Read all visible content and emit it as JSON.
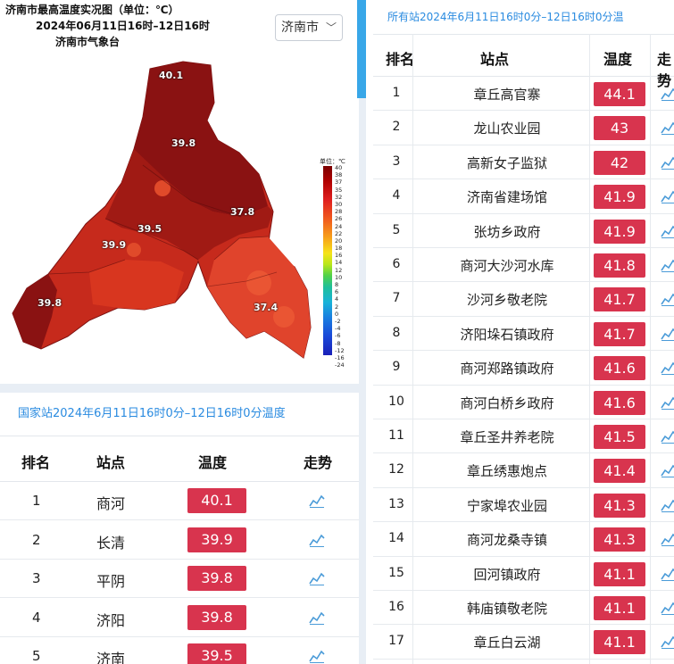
{
  "map": {
    "title": "济南市最高温度实况图（单位：℃）",
    "time_range": "2024年06月11日16时–12日16时",
    "issuer": "济南市气象台",
    "city_select": "济南市",
    "legend_unit": "单位：℃",
    "legend_ticks": [
      "40",
      "38",
      "37",
      "35",
      "32",
      "30",
      "28",
      "26",
      "24",
      "22",
      "20",
      "18",
      "16",
      "14",
      "12",
      "10",
      "8",
      "6",
      "4",
      "2",
      "0",
      "-2",
      "-4",
      "-6",
      "-8",
      "-12",
      "-16",
      "-24"
    ],
    "labels": {
      "shanghe": "40.1",
      "jiyang": "39.8",
      "zhangqiu": "37.8",
      "jinan": "39.5",
      "changqing": "39.9",
      "pingyin": "39.8",
      "laiwu": "37.4"
    },
    "colors": {
      "dark": "#8a1212",
      "mid": "#c62a1c",
      "light": "#e0412a"
    }
  },
  "national": {
    "title": "国家站2024年6月11日16时0分–12日16时0分温度",
    "headers": {
      "rank": "排名",
      "station": "站点",
      "temp": "温度",
      "trend": "走势"
    },
    "rows": [
      {
        "rank": "1",
        "station": "商河",
        "temp": "40.1"
      },
      {
        "rank": "2",
        "station": "长清",
        "temp": "39.9"
      },
      {
        "rank": "3",
        "station": "平阴",
        "temp": "39.8"
      },
      {
        "rank": "4",
        "station": "济阳",
        "temp": "39.8"
      },
      {
        "rank": "5",
        "station": "济南",
        "temp": "39.5"
      }
    ]
  },
  "all_stations": {
    "title": "所有站2024年6月11日16时0分–12日16时0分温",
    "headers": {
      "rank": "排名",
      "station": "站点",
      "temp": "温度",
      "trend": "走势"
    },
    "rows": [
      {
        "rank": "1",
        "station": "章丘高官寨",
        "temp": "44.1"
      },
      {
        "rank": "2",
        "station": "龙山农业园",
        "temp": "43"
      },
      {
        "rank": "3",
        "station": "高新女子监狱",
        "temp": "42"
      },
      {
        "rank": "4",
        "station": "济南省建场馆",
        "temp": "41.9"
      },
      {
        "rank": "5",
        "station": "张坊乡政府",
        "temp": "41.9"
      },
      {
        "rank": "6",
        "station": "商河大沙河水库",
        "temp": "41.8"
      },
      {
        "rank": "7",
        "station": "沙河乡敬老院",
        "temp": "41.7"
      },
      {
        "rank": "8",
        "station": "济阳垛石镇政府",
        "temp": "41.7"
      },
      {
        "rank": "9",
        "station": "商河郑路镇政府",
        "temp": "41.6"
      },
      {
        "rank": "10",
        "station": "商河白桥乡政府",
        "temp": "41.6"
      },
      {
        "rank": "11",
        "station": "章丘圣井养老院",
        "temp": "41.5"
      },
      {
        "rank": "12",
        "station": "章丘绣惠炮点",
        "temp": "41.4"
      },
      {
        "rank": "13",
        "station": "宁家埠农业园",
        "temp": "41.3"
      },
      {
        "rank": "14",
        "station": "商河龙桑寺镇",
        "temp": "41.3"
      },
      {
        "rank": "15",
        "station": "回河镇政府",
        "temp": "41.1"
      },
      {
        "rank": "16",
        "station": "韩庙镇敬老院",
        "temp": "41.1"
      },
      {
        "rank": "17",
        "station": "章丘白云湖",
        "temp": "41.1"
      }
    ]
  },
  "icons": {
    "trend": "trend-chart-icon",
    "dropdown": "chevron-down-icon"
  }
}
